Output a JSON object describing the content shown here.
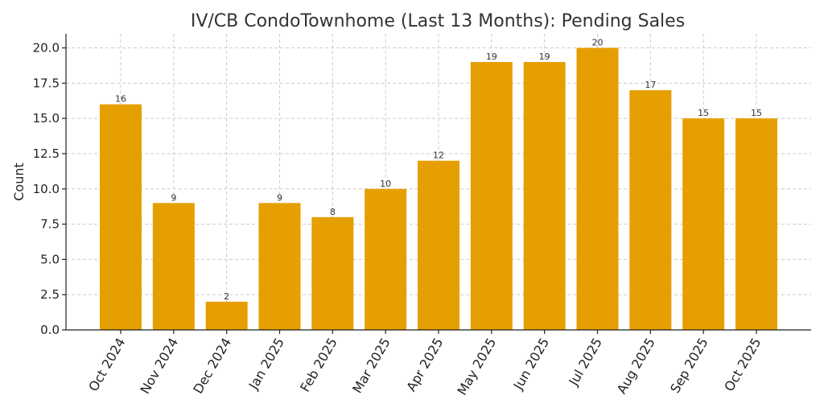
{
  "chart_data": {
    "type": "bar",
    "title": "IV/CB CondoTownhome (Last 13 Months): Pending Sales",
    "xlabel": "",
    "ylabel": "Count",
    "categories": [
      "Oct 2024",
      "Nov 2024",
      "Dec 2024",
      "Jan 2025",
      "Feb 2025",
      "Mar 2025",
      "Apr 2025",
      "May 2025",
      "Jun 2025",
      "Jul 2025",
      "Aug 2025",
      "Sep 2025",
      "Oct 2025"
    ],
    "values": [
      16,
      9,
      2,
      9,
      8,
      10,
      12,
      19,
      19,
      20,
      17,
      15,
      15
    ],
    "yticks": [
      "0.0",
      "2.5",
      "5.0",
      "7.5",
      "10.0",
      "12.5",
      "15.0",
      "17.5",
      "20.0"
    ],
    "ylim": [
      0,
      21
    ],
    "grid": true,
    "bar_color": "#E69F00"
  }
}
